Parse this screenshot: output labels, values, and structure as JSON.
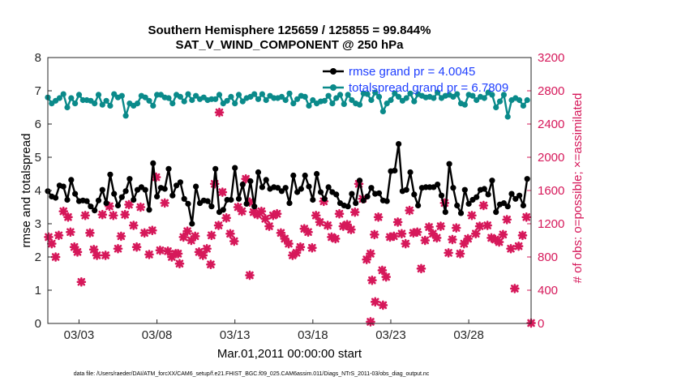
{
  "chart_data": {
    "type": "line",
    "title": "Southern Hemisphere 125659 / 125855 = 99.844%",
    "subtitle": "SAT_V_WIND_COMPONENT @ 250 hPa",
    "xlabel": "Mar.01,2011 00:00:00 start",
    "ylabel_left": "rmse and totalspread",
    "ylabel_right": "# of obs: o=possible; ×=assimilated",
    "xticks": [
      "03/03",
      "03/08",
      "03/13",
      "03/18",
      "03/23",
      "03/28"
    ],
    "yticks_left": [
      "0",
      "1",
      "2",
      "3",
      "4",
      "5",
      "6",
      "7",
      "8"
    ],
    "yticks_right": [
      "0",
      "400",
      "800",
      "1200",
      "1600",
      "2000",
      "2400",
      "2800",
      "3200"
    ],
    "ylim_left": [
      0,
      8
    ],
    "ylim_right": [
      0,
      3200
    ],
    "xlim": [
      1.0,
      32.0
    ],
    "colors": {
      "rmse": "#000000",
      "spread": "#0a8a8a",
      "obs": "#d6185a",
      "legend_text": "#1f3fff"
    },
    "series": [
      {
        "name": "rmse grand pr = 4.0045",
        "x": [
          1.0,
          1.25,
          1.5,
          1.75,
          2.0,
          2.25,
          2.5,
          2.75,
          3.0,
          3.25,
          3.5,
          3.75,
          4.0,
          4.25,
          4.5,
          4.75,
          5.0,
          5.25,
          5.5,
          5.75,
          6.0,
          6.25,
          6.5,
          6.75,
          7.0,
          7.25,
          7.5,
          7.75,
          8.0,
          8.25,
          8.5,
          8.75,
          9.0,
          9.25,
          9.5,
          9.75,
          10.0,
          10.25,
          10.5,
          10.75,
          11.0,
          11.25,
          11.5,
          11.75,
          12.0,
          12.25,
          12.5,
          12.75,
          13.0,
          13.25,
          13.5,
          13.75,
          14.0,
          14.25,
          14.5,
          14.75,
          15.0,
          15.25,
          15.5,
          15.75,
          16.0,
          16.25,
          16.5,
          16.75,
          17.0,
          17.25,
          17.5,
          17.75,
          18.0,
          18.25,
          18.5,
          18.75,
          19.0,
          19.25,
          19.5,
          19.75,
          20.0,
          20.25,
          20.5,
          20.75,
          21.0,
          21.25,
          21.5,
          21.75,
          22.0,
          22.25,
          22.5,
          22.75,
          23.0,
          23.25,
          23.5,
          23.75,
          24.0,
          24.25,
          24.5,
          24.75,
          25.0,
          25.25,
          25.5,
          25.75,
          26.0,
          26.25,
          26.5,
          26.75,
          27.0,
          27.25,
          27.5,
          27.75,
          28.0,
          28.25,
          28.5,
          28.75,
          29.0,
          29.25,
          29.5,
          29.75,
          30.0,
          30.25,
          30.5,
          30.75,
          31.0,
          31.25,
          31.5,
          31.75
        ],
        "values": [
          3.98,
          3.82,
          3.78,
          4.15,
          4.12,
          3.72,
          4.32,
          3.9,
          3.68,
          3.7,
          3.68,
          3.52,
          3.4,
          3.7,
          4.02,
          3.62,
          4.48,
          3.9,
          3.55,
          3.8,
          3.98,
          4.35,
          3.72,
          4.02,
          4.1,
          4.02,
          3.42,
          4.82,
          3.82,
          4.08,
          4.05,
          4.65,
          3.85,
          4.15,
          4.25,
          3.75,
          3.6,
          3.0,
          4.12,
          3.62,
          3.7,
          3.68,
          3.52,
          4.65,
          3.35,
          3.42,
          3.72,
          3.72,
          4.68,
          3.75,
          4.18,
          3.6,
          4.28,
          3.52,
          4.55,
          4.1,
          4.32,
          4.05,
          4.1,
          4.08,
          3.98,
          4.08,
          3.62,
          4.45,
          3.95,
          4.05,
          4.45,
          4.12,
          3.72,
          4.5,
          3.95,
          3.75,
          4.1,
          3.95,
          3.88,
          3.62,
          3.55,
          3.52,
          3.9,
          3.62,
          4.3,
          3.7,
          3.82,
          4.08,
          3.9,
          3.92,
          3.7,
          3.68,
          4.58,
          4.6,
          5.4,
          3.98,
          4.02,
          4.55,
          3.88,
          3.55,
          4.08,
          4.1,
          4.1,
          4.1,
          4.18,
          3.85,
          3.35,
          4.8,
          4.08,
          3.55,
          3.32,
          4.02,
          3.6,
          3.72,
          3.8,
          4.02,
          4.05,
          3.88,
          4.3,
          3.35,
          3.58,
          3.62,
          3.52,
          3.9,
          3.75,
          3.85,
          3.55,
          4.35
        ],
        "dots_at": [
          1,
          2,
          3,
          4,
          5,
          6,
          7,
          8,
          9,
          10,
          11,
          12,
          13,
          14,
          15,
          16,
          17,
          18,
          19,
          20,
          21,
          22,
          23,
          24,
          25,
          26,
          27,
          28,
          29,
          30,
          31,
          32,
          33,
          34,
          35,
          36,
          37,
          38,
          39,
          40,
          41,
          42,
          43,
          44,
          45,
          46,
          47,
          48,
          49,
          50,
          51,
          52,
          53,
          54,
          55,
          56,
          57,
          58,
          59,
          60,
          61,
          62,
          63,
          64,
          65,
          66,
          67,
          68,
          69,
          70,
          71,
          72,
          73,
          74,
          75,
          76,
          77,
          78,
          79,
          80,
          81,
          82,
          83,
          84,
          85,
          86,
          87,
          88,
          89,
          90,
          91,
          92,
          93,
          94,
          95,
          96,
          97,
          98,
          99,
          100,
          101,
          102,
          103,
          104,
          105,
          106,
          107,
          108,
          109,
          110,
          111,
          112,
          113,
          114,
          115,
          116,
          117,
          118,
          119,
          120,
          121,
          122,
          123,
          124
        ]
      },
      {
        "name": "totalspread grand pr = 6.7809",
        "x": [
          1.0,
          1.25,
          1.5,
          1.75,
          2.0,
          2.25,
          2.5,
          2.75,
          3.0,
          3.25,
          3.5,
          3.75,
          4.0,
          4.25,
          4.5,
          4.75,
          5.0,
          5.25,
          5.5,
          5.75,
          6.0,
          6.25,
          6.5,
          6.75,
          7.0,
          7.25,
          7.5,
          7.75,
          8.0,
          8.25,
          8.5,
          8.75,
          9.0,
          9.25,
          9.5,
          9.75,
          10.0,
          10.25,
          10.5,
          10.75,
          11.0,
          11.25,
          11.5,
          11.75,
          12.0,
          12.25,
          12.5,
          12.75,
          13.0,
          13.25,
          13.5,
          13.75,
          14.0,
          14.25,
          14.5,
          14.75,
          15.0,
          15.25,
          15.5,
          15.75,
          16.0,
          16.25,
          16.5,
          16.75,
          17.0,
          17.25,
          17.5,
          17.75,
          18.0,
          18.25,
          18.5,
          18.75,
          19.0,
          19.25,
          19.5,
          19.75,
          20.0,
          20.25,
          20.5,
          20.75,
          21.0,
          21.25,
          21.5,
          21.75,
          22.0,
          22.25,
          22.5,
          22.75,
          23.0,
          23.25,
          23.5,
          23.75,
          24.0,
          24.25,
          24.5,
          24.75,
          25.0,
          25.25,
          25.5,
          25.75,
          26.0,
          26.25,
          26.5,
          26.75,
          27.0,
          27.25,
          27.5,
          27.75,
          28.0,
          28.25,
          28.5,
          28.75,
          29.0,
          29.25,
          29.5,
          29.75,
          30.0,
          30.25,
          30.5,
          30.75,
          31.0,
          31.25,
          31.5,
          31.75
        ],
        "values": [
          6.8,
          6.62,
          6.7,
          6.78,
          6.9,
          6.5,
          6.78,
          6.62,
          6.88,
          6.72,
          6.72,
          6.7,
          6.62,
          6.88,
          6.58,
          6.7,
          6.55,
          6.9,
          6.8,
          6.85,
          6.25,
          6.62,
          6.55,
          6.62,
          6.85,
          6.8,
          6.7,
          6.55,
          6.88,
          6.88,
          6.8,
          6.78,
          6.62,
          6.88,
          6.82,
          6.68,
          6.9,
          6.72,
          6.85,
          6.75,
          6.8,
          6.72,
          6.75,
          6.75,
          6.88,
          6.62,
          6.7,
          6.82,
          6.62,
          6.88,
          6.68,
          6.78,
          6.82,
          6.9,
          6.75,
          6.9,
          6.72,
          6.85,
          6.78,
          6.78,
          6.82,
          6.72,
          6.92,
          6.62,
          6.75,
          6.85,
          6.82,
          6.55,
          6.72,
          6.62,
          6.68,
          6.7,
          6.85,
          6.62,
          6.78,
          6.88,
          6.6,
          6.88,
          6.72,
          6.62,
          6.58,
          6.92,
          6.9,
          6.72,
          6.95,
          6.82,
          6.38,
          6.62,
          6.72,
          6.92,
          6.82,
          6.7,
          6.78,
          6.92,
          6.68,
          6.9,
          6.85,
          6.8,
          6.82,
          6.78,
          6.95,
          6.78,
          6.85,
          6.88,
          6.82,
          6.9,
          6.62,
          6.58,
          6.88,
          6.85,
          6.72,
          6.82,
          6.78,
          6.95,
          6.88,
          6.5,
          6.68,
          6.88,
          6.22,
          6.72,
          6.78,
          6.72,
          6.55,
          6.72
        ],
        "dots_at": [
          1,
          2,
          3,
          4,
          5,
          6,
          7,
          8,
          9,
          10,
          11,
          12,
          13,
          14,
          15,
          16,
          17,
          18,
          19,
          20,
          21,
          22,
          23,
          24,
          25,
          26,
          27,
          28,
          29,
          30,
          31,
          32,
          33,
          34,
          35,
          36,
          37,
          38,
          39,
          40,
          41,
          42,
          43,
          44,
          45,
          46,
          47,
          48,
          49,
          50,
          51,
          52,
          53,
          54,
          55,
          56,
          57,
          58,
          59,
          60,
          61,
          62,
          63,
          64,
          65,
          66,
          67,
          68,
          69,
          70,
          71,
          72,
          73,
          74,
          75,
          76,
          77,
          78,
          79,
          80,
          81,
          82,
          83,
          84,
          85,
          86,
          87,
          88,
          89,
          90,
          91,
          92,
          93,
          94,
          95,
          96,
          97,
          98,
          99,
          100,
          101,
          102,
          103,
          104,
          105,
          106,
          107,
          108,
          109,
          110,
          111,
          112,
          113,
          114,
          115,
          116,
          117,
          118,
          119,
          120,
          121,
          122,
          123,
          124
        ]
      },
      {
        "name": "",
        "axis": "right",
        "marker": "x",
        "x": [
          1.05,
          1.25,
          1.5,
          1.7,
          2.0,
          2.3,
          2.45,
          2.7,
          2.9,
          3.15,
          3.4,
          3.7,
          3.95,
          4.15,
          4.5,
          4.7,
          4.95,
          5.2,
          5.5,
          5.7,
          5.95,
          6.2,
          6.5,
          6.7,
          6.95,
          7.2,
          7.5,
          7.7,
          7.95,
          8.2,
          8.5,
          8.7,
          8.95,
          9.2,
          9.45,
          9.7,
          9.95,
          10.2,
          10.45,
          10.7,
          10.95,
          11.2,
          11.45,
          11.7,
          11.95,
          12.2,
          12.45,
          12.7,
          12.95,
          13.2,
          13.45,
          13.7,
          13.95,
          14.2,
          14.45,
          14.7,
          14.95,
          15.2,
          15.45,
          15.7,
          15.95,
          16.2,
          16.45,
          16.7,
          16.95,
          17.2,
          17.45,
          17.7,
          17.95,
          18.2,
          18.45,
          18.7,
          18.95,
          19.2,
          19.45,
          19.7,
          19.95,
          20.2,
          20.45,
          20.7,
          20.95,
          21.2,
          21.45,
          21.7,
          21.95,
          22.2,
          22.45,
          22.7,
          22.95,
          23.2,
          23.45,
          23.7,
          23.95,
          24.2,
          24.45,
          24.7,
          24.95,
          25.2,
          25.45,
          25.7,
          25.95,
          26.2,
          26.45,
          26.7,
          26.95,
          27.2,
          27.45,
          27.7,
          27.95,
          28.2,
          28.45,
          28.7,
          28.95,
          29.2,
          29.45,
          29.7,
          29.95,
          30.2,
          30.45,
          30.7,
          30.95,
          31.2,
          31.45,
          31.7,
          32.0
        ],
        "values": [
          1040,
          960,
          800,
          1060,
          1350,
          1280,
          1100,
          920,
          860,
          500,
          1300,
          1090,
          890,
          820,
          1310,
          820,
          1410,
          1300,
          900,
          1050,
          1310,
          1430,
          1180,
          920,
          1400,
          1090,
          830,
          1120,
          1760,
          880,
          1450,
          870,
          800,
          840,
          720,
          1040,
          1110,
          1000,
          1050,
          860,
          820,
          900,
          710,
          1680,
          1180,
          1580,
          1270,
          1080,
          990,
          1400,
          1350,
          1740,
          1460,
          1340,
          1310,
          1350,
          1260,
          1170,
          1300,
          1320,
          1090,
          1020,
          960,
          820,
          850,
          920,
          1140,
          1100,
          910,
          1300,
          1220,
          1470,
          1180,
          1040,
          1020,
          1320,
          1170,
          1190,
          1130,
          1340,
          1680,
          1500,
          770,
          840,
          1070,
          1280,
          640,
          560,
          1040,
          1050,
          1220,
          1080,
          960,
          1360,
          1090,
          1100,
          660,
          1000,
          1160,
          1080,
          1030,
          1170,
          1450,
          850,
          1010,
          1150,
          840,
          960,
          1020,
          1300,
          1080,
          1170,
          1420,
          1180,
          1030,
          1010,
          980,
          1070,
          1250,
          900,
          420,
          930,
          1060,
          1280,
          5
        ],
        "extra_points": [
          {
            "x": 12.0,
            "y": 6.35
          },
          {
            "x": 9.35,
            "y": 2.1
          },
          {
            "x": 11.5,
            "y": 2.65
          },
          {
            "x": 13.95,
            "y": 1.45
          },
          {
            "x": 21.8,
            "y": 1.3
          },
          {
            "x": 21.7,
            "y": 0.05
          },
          {
            "x": 22.0,
            "y": 0.65
          },
          {
            "x": 22.5,
            "y": 0.55
          }
        ]
      }
    ]
  }
}
